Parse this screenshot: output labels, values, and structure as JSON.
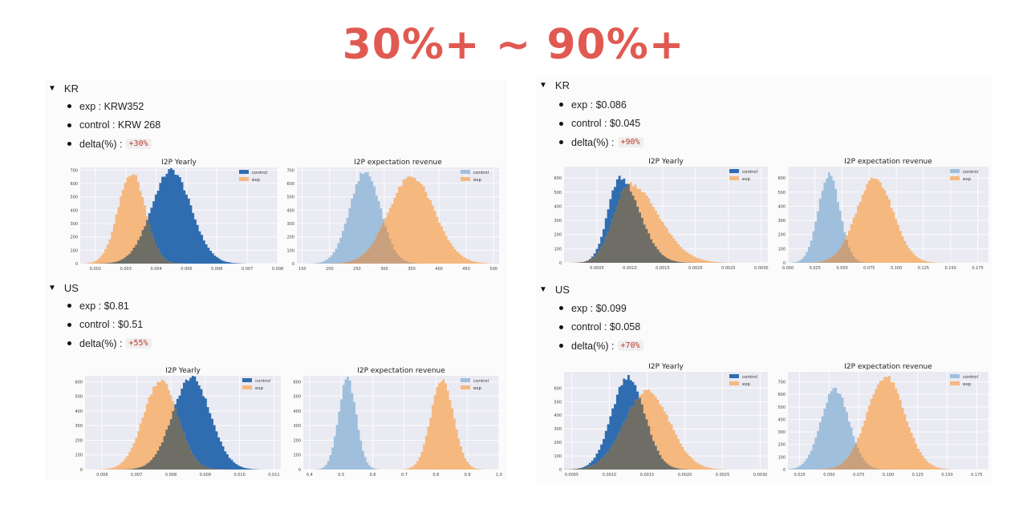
{
  "headline": "30%+ ~ 90%+",
  "colors": {
    "headline": "#e05a52",
    "control_blue": "#2f6db0",
    "exp_orange": "#f5b87f",
    "light_blue": "#9fbfdd",
    "overlap": "#6e6e66",
    "plot_bg": "#eaeaf2"
  },
  "sections": [
    {
      "id": "left-kr",
      "header": "KR",
      "exp": "exp : KRW352",
      "control": "control : KRW 268",
      "delta_label": "delta(%) :",
      "delta_value": "+30%"
    },
    {
      "id": "left-us",
      "header": "US",
      "exp": "exp : $0.81",
      "control": "control : $0.51",
      "delta_label": "delta(%) :",
      "delta_value": "+55%"
    },
    {
      "id": "right-kr",
      "header": "KR",
      "exp": "exp : $0.086",
      "control": "control : $0.045",
      "delta_label": "delta(%) :",
      "delta_value": "+90%"
    },
    {
      "id": "right-us",
      "header": "US",
      "exp": "exp : $0.099",
      "control": "control : $0.058",
      "delta_label": "delta(%) :",
      "delta_value": "+70%"
    }
  ],
  "chart_data": [
    {
      "type": "area",
      "title": "I2P Yearly",
      "style": "dark",
      "xlim": [
        0.0015,
        0.008
      ],
      "ylim": [
        0,
        720
      ],
      "xticks": [
        "0.002",
        "0.003",
        "0.004",
        "0.005",
        "0.006",
        "0.007",
        "0.008"
      ],
      "yticks": [
        "0",
        "100",
        "200",
        "300",
        "400",
        "500",
        "600",
        "700"
      ],
      "legend": "top-right",
      "series": [
        {
          "name": "control",
          "mean": 0.0045,
          "sd": 0.00065,
          "peak": 700
        },
        {
          "name": "exp",
          "mean": 0.0032,
          "sd": 0.00045,
          "peak": 680
        }
      ]
    },
    {
      "type": "area",
      "title": "I2P expectation revenue",
      "style": "light",
      "xlim": [
        140,
        510
      ],
      "ylim": [
        0,
        720
      ],
      "xticks": [
        "150",
        "200",
        "250",
        "300",
        "350",
        "400",
        "450",
        "500"
      ],
      "yticks": [
        "0",
        "100",
        "200",
        "300",
        "400",
        "500",
        "600",
        "700"
      ],
      "legend": "top-right",
      "series": [
        {
          "name": "control",
          "mean": 265,
          "sd": 28,
          "peak": 690
        },
        {
          "name": "exp",
          "mean": 350,
          "sd": 42,
          "peak": 650
        }
      ]
    },
    {
      "type": "area",
      "title": "I2P Yearly",
      "style": "dark",
      "xlim": [
        0.0055,
        0.0112
      ],
      "ylim": [
        0,
        640
      ],
      "xticks": [
        "0.006",
        "0.007",
        "0.008",
        "0.009",
        "0.010",
        "0.011"
      ],
      "yticks": [
        "0",
        "100",
        "200",
        "300",
        "400",
        "500",
        "600"
      ],
      "legend": "top-right",
      "series": [
        {
          "name": "control",
          "mean": 0.0086,
          "sd": 0.00055,
          "peak": 630
        },
        {
          "name": "exp",
          "mean": 0.0077,
          "sd": 0.0005,
          "peak": 610
        }
      ]
    },
    {
      "type": "area",
      "title": "I2P expectation revenue",
      "style": "light",
      "xlim": [
        0.38,
        1.0
      ],
      "ylim": [
        0,
        640
      ],
      "xticks": [
        "0.4",
        "0.5",
        "0.6",
        "0.7",
        "0.8",
        "0.9",
        "1.0"
      ],
      "yticks": [
        "0",
        "100",
        "200",
        "300",
        "400",
        "500",
        "600"
      ],
      "legend": "top-right",
      "series": [
        {
          "name": "control",
          "mean": 0.52,
          "sd": 0.028,
          "peak": 620
        },
        {
          "name": "exp",
          "mean": 0.82,
          "sd": 0.036,
          "peak": 610
        }
      ]
    },
    {
      "type": "area",
      "title": "I2P Yearly",
      "style": "dark",
      "xlim": [
        0.0,
        0.0031
      ],
      "ylim": [
        0,
        680
      ],
      "xticks": [
        "0.0005",
        "0.0010",
        "0.0015",
        "0.0020",
        "0.0025",
        "0.0030"
      ],
      "yticks": [
        "0",
        "100",
        "200",
        "300",
        "400",
        "500",
        "600"
      ],
      "legend": "top-right",
      "series": [
        {
          "name": "control",
          "mean": 0.00085,
          "sd": 0.00022,
          "peak": 600,
          "skew": 0.8
        },
        {
          "name": "exp",
          "mean": 0.001,
          "sd": 0.0003,
          "peak": 560,
          "skew": 1.0
        }
      ]
    },
    {
      "type": "area",
      "title": "I2P expectation revenue",
      "style": "light",
      "xlim": [
        0.0,
        0.185
      ],
      "ylim": [
        0,
        680
      ],
      "xticks": [
        "0.000",
        "0.025",
        "0.050",
        "0.075",
        "0.100",
        "0.125",
        "0.150",
        "0.175"
      ],
      "yticks": [
        "0",
        "100",
        "200",
        "300",
        "400",
        "500",
        "600"
      ],
      "legend": "top-right",
      "series": [
        {
          "name": "control",
          "mean": 0.038,
          "sd": 0.01,
          "peak": 620
        },
        {
          "name": "exp",
          "mean": 0.08,
          "sd": 0.017,
          "peak": 600
        }
      ]
    },
    {
      "type": "area",
      "title": "I2P Yearly",
      "style": "dark",
      "xlim": [
        0.0004,
        0.0031
      ],
      "ylim": [
        0,
        720
      ],
      "xticks": [
        "0.0005",
        "0.0010",
        "0.0015",
        "0.0020",
        "0.0025",
        "0.0030"
      ],
      "yticks": [
        "0",
        "100",
        "200",
        "300",
        "400",
        "500",
        "600"
      ],
      "legend": "top-right",
      "series": [
        {
          "name": "control",
          "mean": 0.00125,
          "sd": 0.00022,
          "peak": 680
        },
        {
          "name": "exp",
          "mean": 0.0015,
          "sd": 0.0003,
          "peak": 580
        }
      ]
    },
    {
      "type": "area",
      "title": "I2P expectation revenue",
      "style": "light",
      "xlim": [
        0.015,
        0.185
      ],
      "ylim": [
        0,
        780
      ],
      "xticks": [
        "0.025",
        "0.050",
        "0.075",
        "0.100",
        "0.125",
        "0.150",
        "0.175"
      ],
      "yticks": [
        "0",
        "100",
        "200",
        "300",
        "400",
        "500",
        "600",
        "700"
      ],
      "legend": "top-right",
      "series": [
        {
          "name": "control",
          "mean": 0.055,
          "sd": 0.012,
          "peak": 640
        },
        {
          "name": "exp",
          "mean": 0.098,
          "sd": 0.016,
          "peak": 740
        }
      ]
    }
  ]
}
